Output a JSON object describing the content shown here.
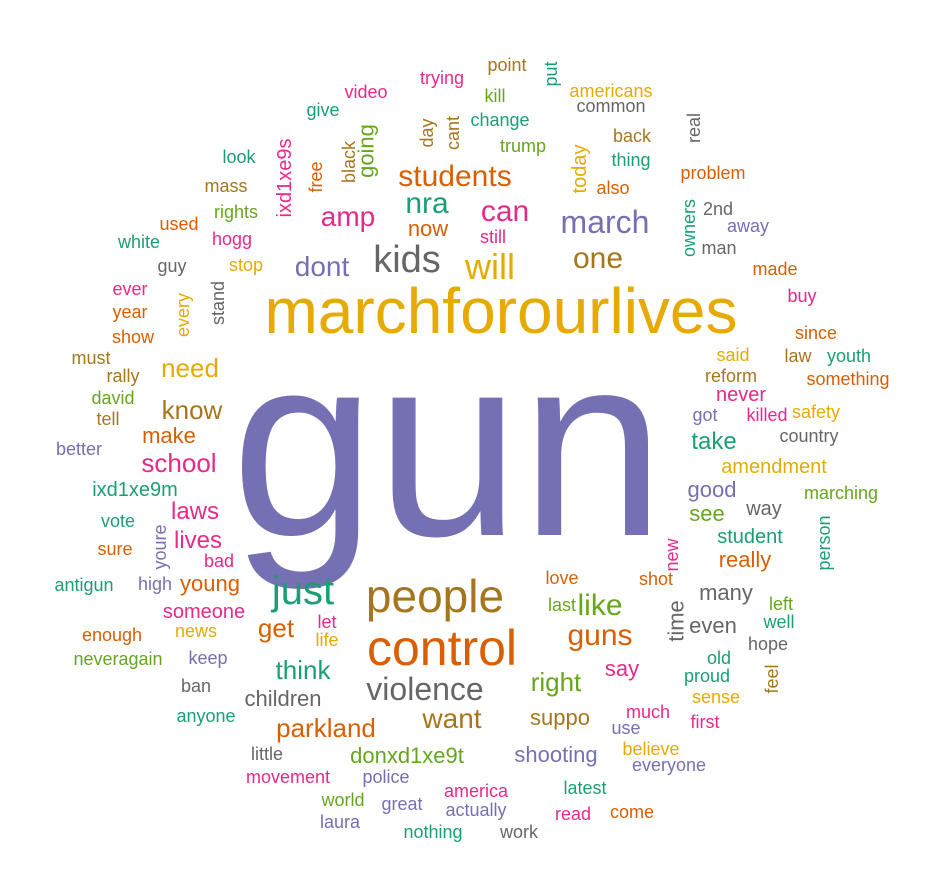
{
  "word_cloud": {
    "palette": {
      "teal": "#1b9e77",
      "orange": "#d95f02",
      "purple": "#7570b3",
      "pink": "#e7298a",
      "green": "#66a61e",
      "gold": "#e6ab02",
      "brown": "#a6761d",
      "gray": "#666666"
    },
    "words": [
      {
        "text": "gun",
        "color": "purple"
      },
      {
        "text": "marchforourlives",
        "color": "gold"
      },
      {
        "text": "control",
        "color": "orange"
      },
      {
        "text": "people",
        "color": "brown"
      },
      {
        "text": "just",
        "color": "teal"
      },
      {
        "text": "kids",
        "color": "gray"
      },
      {
        "text": "will",
        "color": "gold"
      },
      {
        "text": "march",
        "color": "purple"
      },
      {
        "text": "one",
        "color": "brown"
      },
      {
        "text": "students",
        "color": "orange"
      },
      {
        "text": "can",
        "color": "pink"
      },
      {
        "text": "nra",
        "color": "teal"
      },
      {
        "text": "amp",
        "color": "pink"
      },
      {
        "text": "dont",
        "color": "purple"
      },
      {
        "text": "violence",
        "color": "gray"
      },
      {
        "text": "guns",
        "color": "orange"
      },
      {
        "text": "like",
        "color": "green"
      },
      {
        "text": "want",
        "color": "brown"
      },
      {
        "text": "need",
        "color": "gold"
      },
      {
        "text": "know",
        "color": "brown"
      },
      {
        "text": "school",
        "color": "pink"
      },
      {
        "text": "get",
        "color": "orange"
      },
      {
        "text": "think",
        "color": "teal"
      },
      {
        "text": "parkland",
        "color": "orange"
      },
      {
        "text": "right",
        "color": "green"
      },
      {
        "text": "laws",
        "color": "pink"
      },
      {
        "text": "lives",
        "color": "pink"
      },
      {
        "text": "make",
        "color": "orange"
      },
      {
        "text": "young",
        "color": "orange"
      },
      {
        "text": "take",
        "color": "teal"
      },
      {
        "text": "time",
        "color": "gray"
      },
      {
        "text": "say",
        "color": "pink"
      },
      {
        "text": "good",
        "color": "purple"
      },
      {
        "text": "see",
        "color": "green"
      },
      {
        "text": "really",
        "color": "orange"
      },
      {
        "text": "many",
        "color": "gray"
      },
      {
        "text": "even",
        "color": "gray"
      },
      {
        "text": "children",
        "color": "gray"
      },
      {
        "text": "shooting",
        "color": "purple"
      },
      {
        "text": "donxd1xe9t",
        "color": "green"
      },
      {
        "text": "suppo",
        "color": "brown"
      },
      {
        "text": "now",
        "color": "orange"
      },
      {
        "text": "today",
        "color": "gold"
      },
      {
        "text": "going",
        "color": "green"
      },
      {
        "text": "ixd1xe9s",
        "color": "pink"
      },
      {
        "text": "never",
        "color": "pink"
      },
      {
        "text": "way",
        "color": "gray"
      },
      {
        "text": "student",
        "color": "teal"
      },
      {
        "text": "amendment",
        "color": "gold"
      },
      {
        "text": "someone",
        "color": "pink"
      },
      {
        "text": "ixd1xe9m",
        "color": "teal"
      },
      {
        "text": "trump",
        "color": "green"
      },
      {
        "text": "change",
        "color": "teal"
      },
      {
        "text": "americans",
        "color": "gold"
      },
      {
        "text": "common",
        "color": "gray"
      },
      {
        "text": "video",
        "color": "pink"
      },
      {
        "text": "trying",
        "color": "pink"
      },
      {
        "text": "point",
        "color": "brown"
      },
      {
        "text": "put",
        "color": "teal"
      },
      {
        "text": "kill",
        "color": "green"
      },
      {
        "text": "give",
        "color": "teal"
      },
      {
        "text": "day",
        "color": "brown"
      },
      {
        "text": "cant",
        "color": "brown"
      },
      {
        "text": "black",
        "color": "brown"
      },
      {
        "text": "free",
        "color": "orange"
      },
      {
        "text": "look",
        "color": "teal"
      },
      {
        "text": "mass",
        "color": "brown"
      },
      {
        "text": "rights",
        "color": "green"
      },
      {
        "text": "used",
        "color": "orange"
      },
      {
        "text": "white",
        "color": "teal"
      },
      {
        "text": "hogg",
        "color": "pink"
      },
      {
        "text": "stop",
        "color": "gold"
      },
      {
        "text": "guy",
        "color": "gray"
      },
      {
        "text": "ever",
        "color": "pink"
      },
      {
        "text": "year",
        "color": "orange"
      },
      {
        "text": "every",
        "color": "gold"
      },
      {
        "text": "stand",
        "color": "gray"
      },
      {
        "text": "show",
        "color": "orange"
      },
      {
        "text": "must",
        "color": "brown"
      },
      {
        "text": "rally",
        "color": "brown"
      },
      {
        "text": "david",
        "color": "green"
      },
      {
        "text": "tell",
        "color": "brown"
      },
      {
        "text": "better",
        "color": "purple"
      },
      {
        "text": "vote",
        "color": "teal"
      },
      {
        "text": "youre",
        "color": "purple"
      },
      {
        "text": "sure",
        "color": "orange"
      },
      {
        "text": "bad",
        "color": "pink"
      },
      {
        "text": "antigun",
        "color": "teal"
      },
      {
        "text": "high",
        "color": "purple"
      },
      {
        "text": "enough",
        "color": "orange"
      },
      {
        "text": "news",
        "color": "gold"
      },
      {
        "text": "let",
        "color": "pink"
      },
      {
        "text": "life",
        "color": "gold"
      },
      {
        "text": "neveragain",
        "color": "green"
      },
      {
        "text": "keep",
        "color": "purple"
      },
      {
        "text": "ban",
        "color": "gray"
      },
      {
        "text": "anyone",
        "color": "teal"
      },
      {
        "text": "little",
        "color": "gray"
      },
      {
        "text": "movement",
        "color": "pink"
      },
      {
        "text": "police",
        "color": "purple"
      },
      {
        "text": "world",
        "color": "green"
      },
      {
        "text": "laura",
        "color": "purple"
      },
      {
        "text": "great",
        "color": "purple"
      },
      {
        "text": "america",
        "color": "pink"
      },
      {
        "text": "actually",
        "color": "purple"
      },
      {
        "text": "nothing",
        "color": "teal"
      },
      {
        "text": "work",
        "color": "gray"
      },
      {
        "text": "latest",
        "color": "teal"
      },
      {
        "text": "read",
        "color": "pink"
      },
      {
        "text": "come",
        "color": "orange"
      },
      {
        "text": "everyone",
        "color": "purple"
      },
      {
        "text": "believe",
        "color": "gold"
      },
      {
        "text": "use",
        "color": "purple"
      },
      {
        "text": "much",
        "color": "pink"
      },
      {
        "text": "first",
        "color": "pink"
      },
      {
        "text": "sense",
        "color": "gold"
      },
      {
        "text": "proud",
        "color": "teal"
      },
      {
        "text": "old",
        "color": "teal"
      },
      {
        "text": "feel",
        "color": "brown"
      },
      {
        "text": "hope",
        "color": "gray"
      },
      {
        "text": "well",
        "color": "teal"
      },
      {
        "text": "left",
        "color": "green"
      },
      {
        "text": "love",
        "color": "orange"
      },
      {
        "text": "last",
        "color": "green"
      },
      {
        "text": "shot",
        "color": "orange"
      },
      {
        "text": "new",
        "color": "pink"
      },
      {
        "text": "person",
        "color": "teal"
      },
      {
        "text": "marching",
        "color": "green"
      },
      {
        "text": "country",
        "color": "gray"
      },
      {
        "text": "safety",
        "color": "gold"
      },
      {
        "text": "killed",
        "color": "pink"
      },
      {
        "text": "got",
        "color": "purple"
      },
      {
        "text": "reform",
        "color": "brown"
      },
      {
        "text": "something",
        "color": "orange"
      },
      {
        "text": "youth",
        "color": "teal"
      },
      {
        "text": "law",
        "color": "brown"
      },
      {
        "text": "said",
        "color": "gold"
      },
      {
        "text": "since",
        "color": "orange"
      },
      {
        "text": "buy",
        "color": "pink"
      },
      {
        "text": "made",
        "color": "orange"
      },
      {
        "text": "man",
        "color": "gray"
      },
      {
        "text": "away",
        "color": "purple"
      },
      {
        "text": "2nd",
        "color": "gray"
      },
      {
        "text": "owners",
        "color": "teal"
      },
      {
        "text": "problem",
        "color": "orange"
      },
      {
        "text": "real",
        "color": "gray"
      },
      {
        "text": "back",
        "color": "brown"
      },
      {
        "text": "thing",
        "color": "teal"
      },
      {
        "text": "also",
        "color": "orange"
      },
      {
        "text": "still",
        "color": "pink"
      }
    ]
  }
}
